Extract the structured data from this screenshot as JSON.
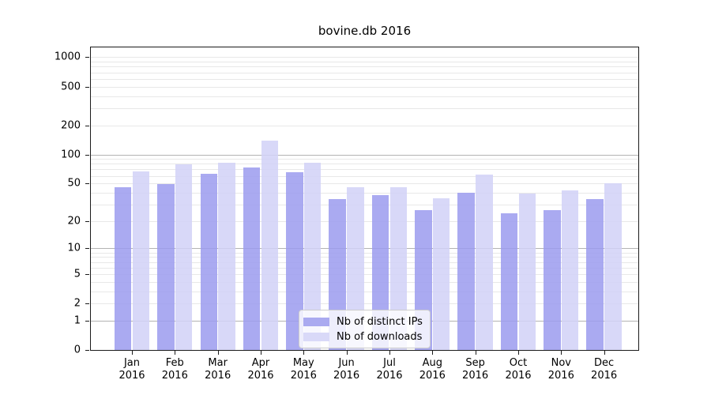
{
  "chart_data": {
    "type": "bar",
    "title": "bovine.db 2016",
    "categories": [
      "Jan",
      "Feb",
      "Mar",
      "Apr",
      "May",
      "Jun",
      "Jul",
      "Aug",
      "Sep",
      "Oct",
      "Nov",
      "Dec"
    ],
    "x_tick_year": "2016",
    "series": [
      {
        "name": "Nb of distinct IPs",
        "swatch_color": "#aaaaf0",
        "fill": "rgba(155,155,238,0.85)",
        "values": [
          46,
          49,
          63,
          73,
          66,
          34,
          38,
          26,
          40,
          24,
          26,
          34
        ]
      },
      {
        "name": "Nb of downloads",
        "swatch_color": "#d9d9f8",
        "fill": "rgba(209,209,247,0.85)",
        "values": [
          67,
          79,
          82,
          140,
          82,
          46,
          46,
          35,
          62,
          39,
          42,
          50
        ]
      }
    ],
    "y_ticks": [
      1000,
      500,
      200,
      100,
      50,
      20,
      10,
      5,
      2,
      1,
      0
    ],
    "y_scale": "log10(value+1)",
    "y_major_gridline_values": [
      1,
      10,
      100
    ],
    "y_axis_top_value": 1300,
    "ylim": [
      0,
      1300
    ],
    "grid": true,
    "legend_position": "lower center"
  },
  "style": {
    "background": "#ffffff",
    "axis_color": "#1a1a1a",
    "major_grid_color": "#b3b3b3",
    "minor_grid_color": "#e8e8e8",
    "text_color": "#000000"
  }
}
